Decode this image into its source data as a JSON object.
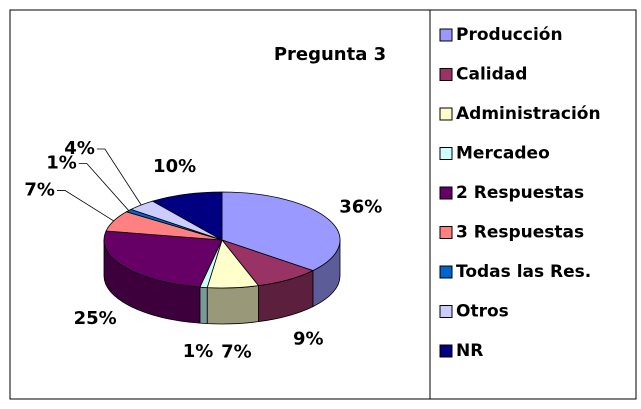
{
  "chart_data": {
    "type": "pie",
    "title": "Pregunta 3",
    "categories": [
      "Producción",
      "Calidad",
      "Administración",
      "Mercadeo",
      "2 Respuestas",
      "3 Respuestas",
      "Todas las Res.",
      "Otros",
      "NR"
    ],
    "values": [
      36,
      9,
      7,
      1,
      25,
      7,
      1,
      4,
      10
    ],
    "value_labels": [
      "36%",
      "9%",
      "7%",
      "1%",
      "25%",
      "7%",
      "1%",
      "4%",
      "10%"
    ],
    "colors": [
      "#9999ff",
      "#993366",
      "#ffffcc",
      "#ccffff",
      "#660066",
      "#ff8080",
      "#0066cc",
      "#ccccff",
      "#000080"
    ],
    "legend": "right"
  }
}
